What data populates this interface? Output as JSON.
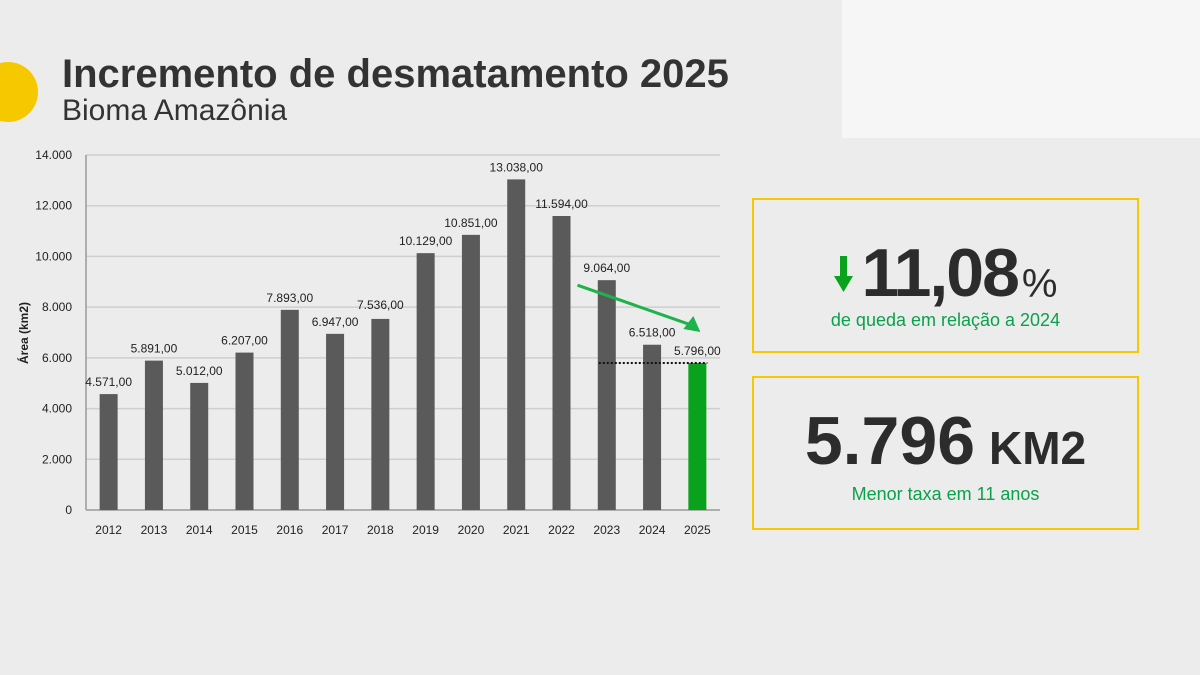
{
  "header": {
    "title": "Incremento de desmatamento 2025",
    "subtitle": "Bioma Amazônia"
  },
  "chart_data": {
    "type": "bar",
    "title": "Incremento de desmatamento 2025",
    "xlabel": "",
    "ylabel": "Área (km2)",
    "ylim": [
      0,
      14000
    ],
    "yticks": [
      0,
      2000,
      4000,
      6000,
      8000,
      10000,
      12000,
      14000
    ],
    "ytick_labels": [
      "0",
      "2.000",
      "4.000",
      "6.000",
      "8.000",
      "10.000",
      "12.000",
      "14.000"
    ],
    "categories": [
      "2012",
      "2013",
      "2014",
      "2015",
      "2016",
      "2017",
      "2018",
      "2019",
      "2020",
      "2021",
      "2022",
      "2023",
      "2024",
      "2025"
    ],
    "values": [
      4571,
      5891,
      5012,
      6207,
      7893,
      6947,
      7536,
      10129,
      10851,
      13038,
      11594,
      9064,
      6518,
      5796
    ],
    "data_labels": [
      "4.571,00",
      "5.891,00",
      "5.012,00",
      "6.207,00",
      "7.893,00",
      "6.947,00",
      "7.536,00",
      "10.129,00",
      "10.851,00",
      "13.038,00",
      "11.594,00",
      "9.064,00",
      "6.518,00",
      "5.796,00"
    ],
    "bar_color": "#5a5a5a",
    "highlight_color": "#0aa21c",
    "grid": true
  },
  "stats": {
    "drop": {
      "value": "11,08",
      "unit": "%",
      "caption": "de queda em relação a 2024",
      "icon": "arrow-down-icon"
    },
    "area": {
      "value": "5.796",
      "unit": "KM2",
      "caption": "Menor taxa em 11 anos"
    }
  }
}
